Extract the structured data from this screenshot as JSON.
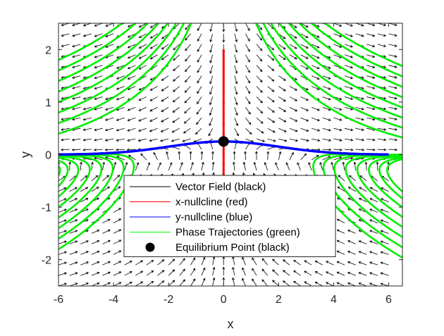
{
  "chart_data": {
    "type": "scatter",
    "title": "",
    "xlabel": "x",
    "ylabel": "y",
    "xlim": [
      -6,
      6.5
    ],
    "ylim": [
      -2.5,
      2.5
    ],
    "xticks": [
      -6,
      -4,
      -2,
      0,
      2,
      4,
      6
    ],
    "yticks": [
      -2,
      -1,
      0,
      1,
      2
    ],
    "grid": false,
    "legend_position": "lower-center",
    "vector_field": {
      "x_range": [
        -6,
        6
      ],
      "y_range": [
        -2.5,
        2.5
      ],
      "x_step": 0.4,
      "y_step": 0.2
    },
    "nullclines": {
      "x": {
        "x": 0,
        "y_range": [
          -0.4,
          2
        ]
      },
      "y": {
        "x_range": [
          -6,
          6
        ]
      }
    },
    "trajectories": {
      "left_start_y": [
        -1.8,
        -1.6,
        -1.4,
        -1.2,
        -1.0,
        -0.8,
        -0.6,
        -0.4,
        0.4,
        0.6,
        0.8,
        1.0,
        1.2,
        1.4,
        1.6,
        1.8
      ],
      "right_start_y": [
        -1.8,
        -1.6,
        -1.4,
        -1.2,
        -1.0,
        -0.8,
        -0.6,
        -0.4,
        0.4,
        0.6,
        0.8,
        1.0,
        1.2,
        1.4,
        1.6,
        1.8
      ]
    },
    "equilibrium_points": [
      {
        "x": 0,
        "y": 0.25
      }
    ],
    "series": [
      {
        "name": "Vector Field (black)",
        "color": "#000000",
        "marker": "line"
      },
      {
        "name": "x-nullcline (red)",
        "color": "#ff0000",
        "marker": "line"
      },
      {
        "name": "y-nullcline (blue)",
        "color": "#0000ff",
        "marker": "line"
      },
      {
        "name": "Phase Trajectories (green)",
        "color": "#00ff00",
        "marker": "line"
      },
      {
        "name": "Equilibrium Point (black)",
        "color": "#000000",
        "marker": "dot"
      }
    ]
  }
}
